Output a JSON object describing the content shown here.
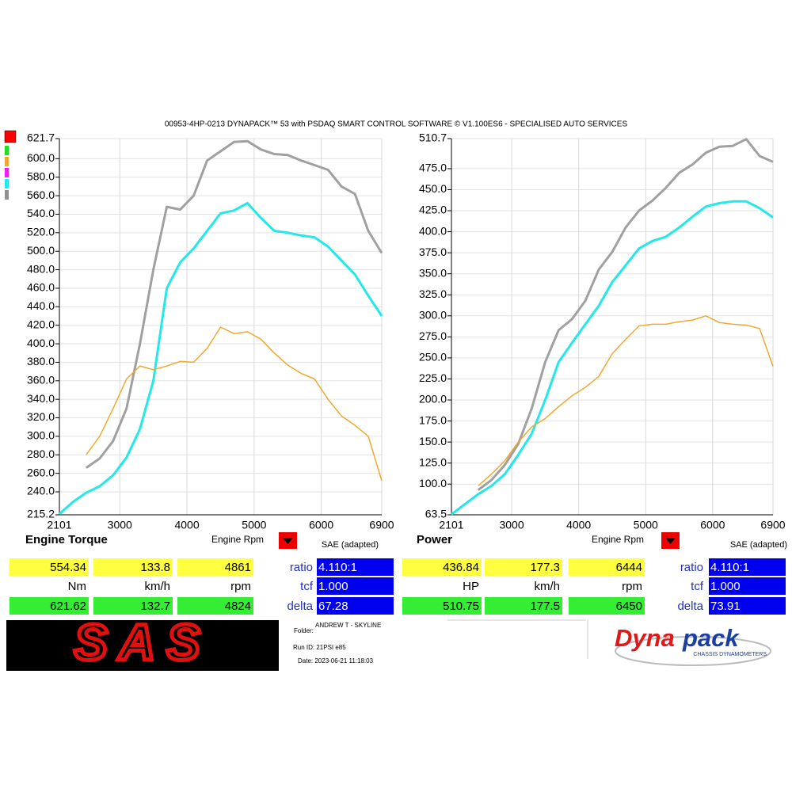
{
  "header": {
    "title": "00953-4HP-0213 DYNAPACK™ 53 with PSDAQ SMART CONTROL SOFTWARE © V1.100ES6 - SPECIALISED AUTO SERVICES"
  },
  "chart_data": [
    {
      "type": "line",
      "title": "Engine Torque",
      "x_label": "Engine Rpm",
      "note": "SAE (adapted)",
      "x": [
        2100,
        2300,
        2500,
        2700,
        2900,
        3100,
        3300,
        3500,
        3700,
        3900,
        4100,
        4300,
        4500,
        4700,
        4900,
        5100,
        5300,
        5500,
        5700,
        5900,
        6100,
        6300,
        6500,
        6700,
        6900
      ],
      "xlim": [
        2101,
        6900
      ],
      "xticks": [
        2101,
        3000,
        4000,
        5000,
        6000,
        6900
      ],
      "ylim": [
        215.2,
        621.7
      ],
      "yticks": [
        215.2,
        {
          "value": 240,
          "label": "240.0"
        },
        {
          "value": 260,
          "label": "260.0"
        },
        {
          "value": 280,
          "label": "280.0"
        },
        {
          "value": 300,
          "label": "300.0"
        },
        {
          "value": 320,
          "label": "320.0"
        },
        {
          "value": 340,
          "label": "340.0"
        },
        {
          "value": 360,
          "label": "360.0"
        },
        {
          "value": 380,
          "label": "380.0"
        },
        {
          "value": 400,
          "label": "400.0"
        },
        {
          "value": 420,
          "label": "420.0"
        },
        {
          "value": 440,
          "label": "440.0"
        },
        {
          "value": 460,
          "label": "460.0"
        },
        {
          "value": 480,
          "label": "480.0"
        },
        {
          "value": 500,
          "label": "500.0"
        },
        {
          "value": 520,
          "label": "520.0"
        },
        {
          "value": 540,
          "label": "540.0"
        },
        {
          "value": 560,
          "label": "560.0"
        },
        {
          "value": 580,
          "label": "580.0"
        },
        {
          "value": 600,
          "label": "600.0"
        },
        621.7
      ],
      "grid": true,
      "series": [
        {
          "color": "#a0a0a0",
          "values": [
            null,
            null,
            266,
            276,
            295,
            330,
            400,
            480,
            548,
            545,
            560,
            598,
            608,
            618,
            619,
            610,
            605,
            604,
            598,
            593,
            588,
            570,
            562,
            522,
            498
          ]
        },
        {
          "color": "#22e8e8",
          "values": [
            216,
            229,
            239,
            246,
            258,
            277,
            308,
            360,
            460,
            488,
            503,
            522,
            541,
            544,
            552,
            536,
            522,
            520,
            517,
            515,
            505,
            490,
            475,
            452,
            430
          ]
        },
        {
          "color": "#f0a830",
          "values": [
            null,
            null,
            280,
            300,
            330,
            362,
            376,
            372,
            376,
            381,
            380,
            395,
            418,
            411,
            413,
            405,
            390,
            377,
            368,
            362,
            340,
            322,
            312,
            300,
            252
          ]
        }
      ]
    },
    {
      "type": "line",
      "title": "Power",
      "x_label": "Engine Rpm",
      "note": "SAE (adapted)",
      "x": [
        2100,
        2300,
        2500,
        2700,
        2900,
        3100,
        3300,
        3500,
        3700,
        3900,
        4100,
        4300,
        4500,
        4700,
        4900,
        5100,
        5300,
        5500,
        5700,
        5900,
        6100,
        6300,
        6500,
        6700,
        6900
      ],
      "xlim": [
        2101,
        6900
      ],
      "xticks": [
        2101,
        3000,
        4000,
        5000,
        6000,
        6900
      ],
      "ylim": [
        63.5,
        510.7
      ],
      "yticks": [
        63.5,
        {
          "value": 100,
          "label": "100.0"
        },
        {
          "value": 125,
          "label": "125.0"
        },
        {
          "value": 150,
          "label": "150.0"
        },
        {
          "value": 175,
          "label": "175.0"
        },
        {
          "value": 200,
          "label": "200.0"
        },
        {
          "value": 225,
          "label": "225.0"
        },
        {
          "value": 250,
          "label": "250.0"
        },
        {
          "value": 275,
          "label": "275.0"
        },
        {
          "value": 300,
          "label": "300.0"
        },
        {
          "value": 325,
          "label": "325.0"
        },
        {
          "value": 350,
          "label": "350.0"
        },
        {
          "value": 375,
          "label": "375.0"
        },
        {
          "value": 400,
          "label": "400.0"
        },
        {
          "value": 425,
          "label": "425.0"
        },
        {
          "value": 450,
          "label": "450.0"
        },
        {
          "value": 475,
          "label": "475.0"
        },
        510.7
      ],
      "grid": true,
      "series": [
        {
          "color": "#a0a0a0",
          "values": [
            null,
            null,
            93,
            105,
            123,
            148,
            190,
            245,
            283,
            296,
            318,
            355,
            376,
            405,
            425,
            437,
            452,
            470,
            480,
            494,
            501,
            502,
            510,
            490,
            483
          ]
        },
        {
          "color": "#22e8e8",
          "values": [
            64,
            76,
            88,
            98,
            112,
            135,
            160,
            200,
            245,
            268,
            290,
            312,
            340,
            360,
            380,
            389,
            394,
            405,
            418,
            430,
            434,
            436,
            436,
            428,
            417
          ]
        },
        {
          "color": "#f0a830",
          "values": [
            null,
            null,
            98,
            112,
            128,
            150,
            168,
            178,
            192,
            205,
            215,
            228,
            255,
            272,
            288,
            290,
            290,
            293,
            295,
            300,
            292,
            290,
            289,
            285,
            240
          ]
        }
      ]
    }
  ],
  "panels": [
    {
      "row1": [
        "554.34",
        "133.8",
        "4861"
      ],
      "units": [
        "Nm",
        "km/h",
        "rpm"
      ],
      "row2": [
        "621.62",
        "132.7",
        "4824"
      ],
      "labels": [
        "ratio",
        "tcf",
        "delta"
      ],
      "boxes": [
        "4.110:1",
        "1.000",
        "67.28"
      ]
    },
    {
      "row1": [
        "436.84",
        "177.3",
        "6444"
      ],
      "units": [
        "HP",
        "km/h",
        "rpm"
      ],
      "row2": [
        "510.75",
        "177.5",
        "6450"
      ],
      "labels": [
        "ratio",
        "tcf",
        "delta"
      ],
      "boxes": [
        "4.110:1",
        "1.000",
        "73.91"
      ]
    }
  ],
  "run_info": {
    "folder_label": "Folder:",
    "folder": "ANDREW T - SKYLINE",
    "run_id": "Run ID: 21PSI e85",
    "date": "Date: 2023-06-21 11:18:03"
  },
  "logos": {
    "left": "SAS",
    "right": [
      "Dyna",
      "pack"
    ],
    "right_sub": "CHASSIS DYNAMOMETERS"
  }
}
